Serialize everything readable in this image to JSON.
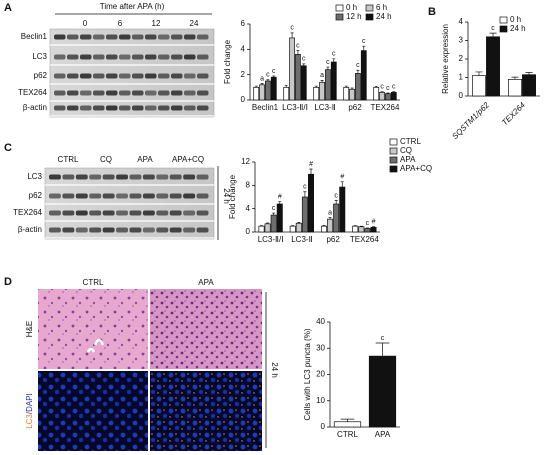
{
  "figure": {
    "panel_labels": [
      "A",
      "B",
      "C",
      "D"
    ],
    "blot_a": {
      "title": "Time after APA (h)",
      "lanes": [
        "0",
        "6",
        "12",
        "24"
      ],
      "rows": [
        "Beclin1",
        "LC3",
        "p62",
        "TEX264",
        "β-actin"
      ]
    },
    "blot_c": {
      "lanes": [
        "CTRL",
        "CQ",
        "APA",
        "APA+CQ"
      ],
      "rows": [
        "LC3",
        "p62",
        "TEX264",
        "β-actin"
      ],
      "note": "24 h"
    },
    "images_d": {
      "columns": [
        "CTRL",
        "APA"
      ],
      "rows": [
        "H&E",
        [
          "LC3",
          "/DAPI"
        ]
      ],
      "note": "24 h"
    }
  },
  "chart_data": [
    {
      "type": "bar",
      "ylabel": "Fold change",
      "categories": [
        "Beclin1",
        "LC3-Ⅱ/Ⅰ",
        "LC3-Ⅱ",
        "p62",
        "TEX264"
      ],
      "ylim": [
        0,
        6
      ],
      "yticks": [
        0,
        2,
        4,
        6
      ],
      "series": [
        {
          "name": "0 h",
          "color": "#ffffff",
          "values": [
            1,
            1,
            1,
            1,
            1
          ],
          "errors": [
            0.1,
            0.15,
            0.1,
            0.1,
            0.08
          ],
          "annotations": [
            null,
            null,
            null,
            null,
            null
          ]
        },
        {
          "name": "6 h",
          "color": "#c8c8c8",
          "values": [
            1.2,
            4.9,
            1.4,
            0.85,
            0.6
          ],
          "errors": [
            0.1,
            0.4,
            0.15,
            0.1,
            0.05
          ],
          "annotations": [
            "a",
            "c",
            "a",
            null,
            "c"
          ]
        },
        {
          "name": "12 h",
          "color": "#6e6e6e",
          "values": [
            1.5,
            3.6,
            2.4,
            2.1,
            0.5
          ],
          "errors": [
            0.1,
            0.3,
            0.2,
            0.25,
            0.05
          ],
          "annotations": [
            "c",
            "c",
            "c",
            "c",
            "c"
          ]
        },
        {
          "name": "24 h",
          "color": "#111111",
          "values": [
            1.8,
            2.7,
            3.0,
            3.9,
            0.6
          ],
          "errors": [
            0.1,
            0.15,
            0.25,
            0.35,
            0.05
          ],
          "annotations": [
            "c",
            "c",
            "c",
            "c",
            "c"
          ]
        }
      ]
    },
    {
      "type": "bar",
      "ylabel": "Relative expression",
      "categories": [
        "SQSTM1/p62",
        "TEX264"
      ],
      "ylim": [
        0,
        4
      ],
      "yticks": [
        0,
        1,
        2,
        3,
        4
      ],
      "series": [
        {
          "name": "0 h",
          "color": "#ffffff",
          "values": [
            1.1,
            0.9
          ],
          "errors": [
            0.2,
            0.12
          ],
          "annotations": [
            null,
            null
          ]
        },
        {
          "name": "24 h",
          "color": "#111111",
          "values": [
            3.2,
            1.15
          ],
          "errors": [
            0.2,
            0.12
          ],
          "annotations": [
            "c",
            null
          ]
        }
      ]
    },
    {
      "type": "bar",
      "ylabel": "Fold change",
      "categories": [
        "LC3-Ⅱ/Ⅰ",
        "LC3-Ⅱ",
        "p62",
        "TEX264"
      ],
      "ylim": [
        0,
        12
      ],
      "yticks": [
        0,
        4,
        8,
        12
      ],
      "series": [
        {
          "name": "CTRL",
          "color": "#ffffff",
          "values": [
            1,
            1,
            1,
            1
          ],
          "errors": [
            0.1,
            0.1,
            0.15,
            0.1
          ],
          "annotations": [
            null,
            null,
            null,
            null
          ]
        },
        {
          "name": "CQ",
          "color": "#c8c8c8",
          "values": [
            1.4,
            1.5,
            2.2,
            0.9
          ],
          "errors": [
            0.15,
            0.15,
            0.3,
            0.1
          ],
          "annotations": [
            null,
            null,
            "a",
            null
          ]
        },
        {
          "name": "APA",
          "color": "#6e6e6e",
          "values": [
            2.9,
            6.0,
            4.8,
            0.6
          ],
          "errors": [
            0.35,
            0.9,
            0.6,
            0.1
          ],
          "annotations": [
            "c",
            "c",
            "c",
            "c"
          ]
        },
        {
          "name": "APA+CQ",
          "color": "#111111",
          "values": [
            4.8,
            9.9,
            7.7,
            0.8
          ],
          "errors": [
            0.4,
            0.9,
            0.9,
            0.1
          ],
          "annotations": [
            "#",
            "#",
            "#",
            "#"
          ]
        }
      ]
    },
    {
      "type": "bar",
      "ylabel": "Cells with LC3 puncta (%)",
      "categories": [
        "CTRL",
        "APA"
      ],
      "ylim": [
        0,
        40
      ],
      "yticks": [
        0,
        10,
        20,
        30,
        40
      ],
      "values": [
        2,
        27
      ],
      "errors": [
        1,
        5
      ],
      "colors": [
        "#ffffff",
        "#111111"
      ],
      "annotations": [
        null,
        "c"
      ]
    }
  ]
}
